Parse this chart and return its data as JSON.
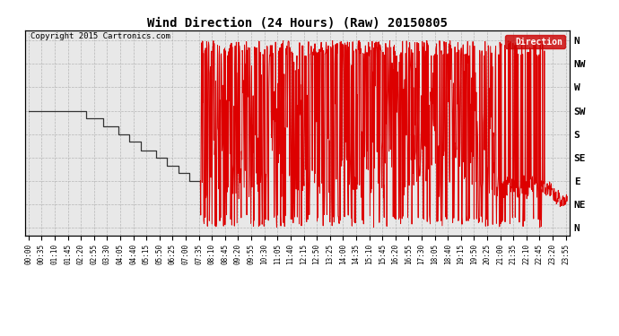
{
  "title": "Wind Direction (24 Hours) (Raw) 20150805",
  "copyright": "Copyright 2015 Cartronics.com",
  "legend_label": "Direction",
  "legend_bg": "#cc0000",
  "legend_fg": "#ffffff",
  "y_labels": [
    "N",
    "NW",
    "W",
    "SW",
    "S",
    "SE",
    "E",
    "NE",
    "N"
  ],
  "y_values": [
    360,
    315,
    270,
    225,
    180,
    135,
    90,
    45,
    0
  ],
  "ylim": [
    -15,
    380
  ],
  "background_color": "#ffffff",
  "plot_bg": "#e8e8e8",
  "grid_color": "#aaaaaa",
  "line_color_red": "#dd0000",
  "line_color_dark": "#333333",
  "x_tick_interval_minutes": 35,
  "total_minutes": 1440,
  "title_fontsize": 10,
  "copyright_fontsize": 6.5,
  "tick_fontsize": 5.5
}
